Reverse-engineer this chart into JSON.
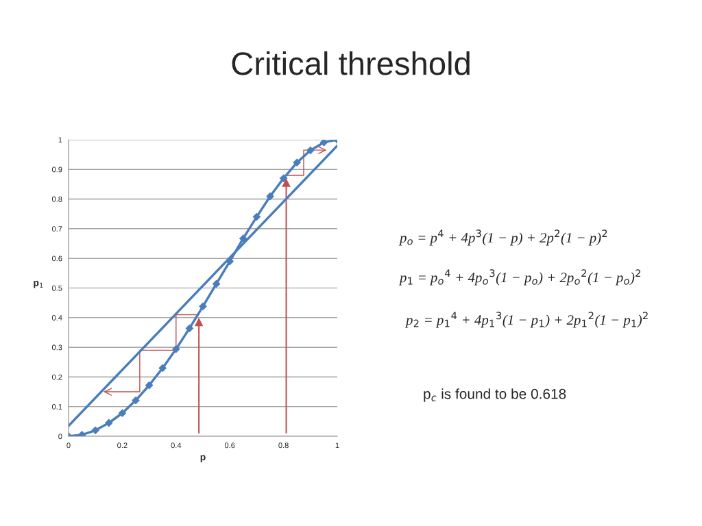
{
  "chart_data": {
    "type": "line",
    "title": "Critical threshold",
    "xlabel": "p",
    "ylabel": "p$_{1}$",
    "x": [
      0,
      0.05,
      0.1,
      0.15,
      0.2,
      0.25,
      0.3,
      0.35,
      0.4,
      0.45,
      0.5,
      0.55,
      0.6,
      0.65,
      0.7,
      0.75,
      0.8,
      0.85,
      0.9,
      0.95,
      1
    ],
    "series": [
      {
        "color": "#4a7ebb",
        "marker": "diamond",
        "values": [
          0,
          0.005,
          0.02,
          0.045,
          0.078,
          0.121,
          0.172,
          0.23,
          0.294,
          0.364,
          0.438,
          0.514,
          0.59,
          0.667,
          0.74,
          0.809,
          0.87,
          0.923,
          0.964,
          0.991,
          1
        ]
      },
      {
        "color": "#4a7ebb",
        "marker": "none",
        "x": [
          0,
          1
        ],
        "values": [
          0.035,
          0.98
        ]
      }
    ],
    "xlim": [
      0,
      1
    ],
    "ylim": [
      0,
      1
    ],
    "xticks": [
      0,
      0.2,
      0.4,
      0.6,
      0.8,
      1
    ],
    "yticks": [
      0,
      0.1,
      0.2,
      0.3,
      0.4,
      0.5,
      0.6,
      0.7,
      0.8,
      0.9,
      1
    ],
    "grid": "y",
    "legend": false,
    "annotations": [
      "p$_{o}$ = p$^{4}$ + 4p$^{3}$(1 − p) + 2p$^{2}$(1 − p)$^{2}$",
      "p$_{1}$ = p$_{o}$$^{4}$ + 4p$_{o}$$^{3}$(1 − p$_{o}$) + 2p$_{o}$$^{2}$(1 − p$_{o}$)$^{2}$",
      "p$_{2}$ = p$_{1}$$^{4}$ + 4p$_{1}$$^{3}$(1 − p$_{1}$) + 2p$_{1}$$^{2}$(1 − p$_{1}$)$^{2}$",
      "p$_{c}$ is found to be 0.618"
    ]
  }
}
